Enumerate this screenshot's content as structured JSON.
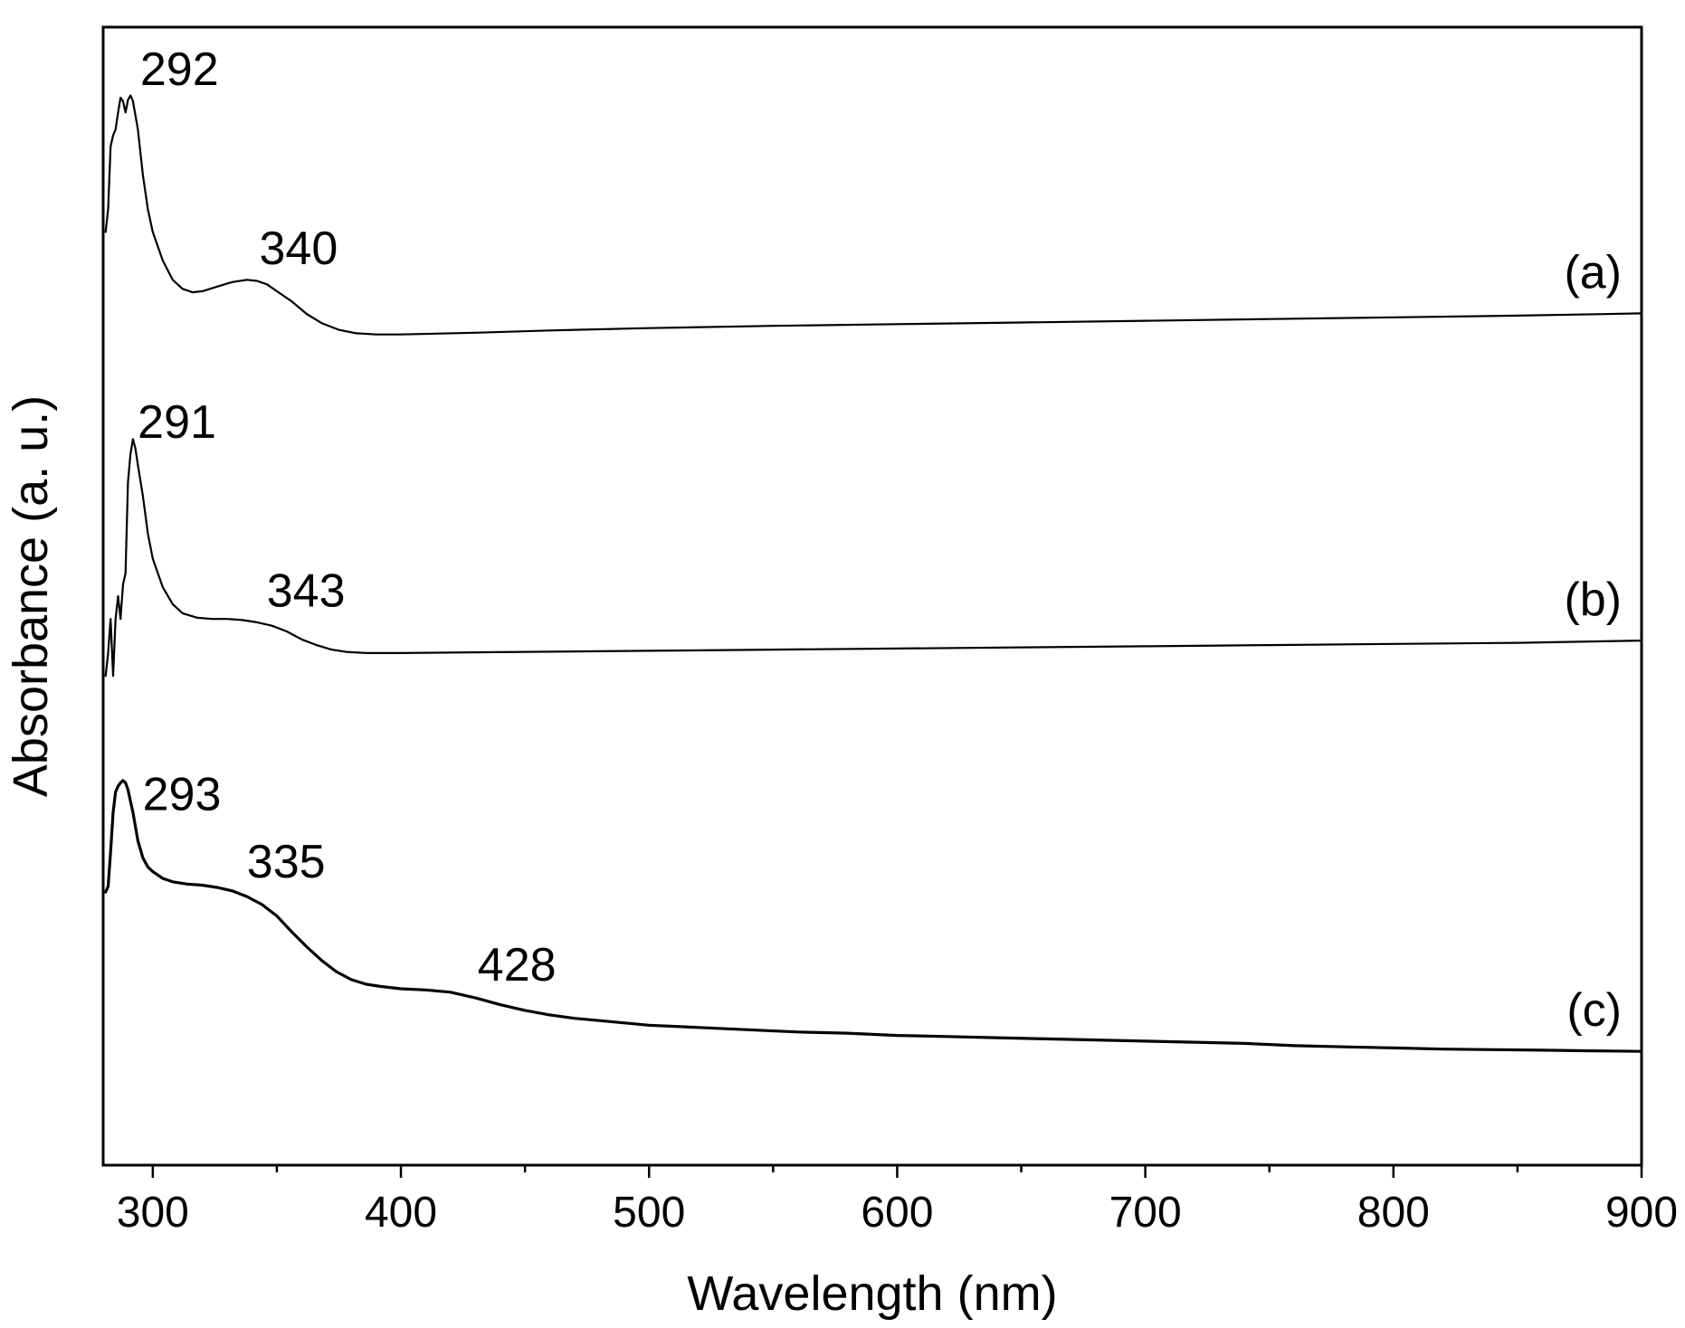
{
  "chart_data": {
    "type": "line",
    "xlabel": "Wavelength (nm)",
    "ylabel": "Absorbance (a. u.)",
    "xlim": [
      280,
      900
    ],
    "ylim": [
      0,
      1
    ],
    "x_ticks": [
      300,
      400,
      500,
      600,
      700,
      800,
      900
    ],
    "x_minor_ticks": [
      350,
      450,
      550,
      650,
      750,
      850
    ],
    "y_ticks_shown": false,
    "grid": false,
    "legend": "none",
    "series": [
      {
        "label": "(a)",
        "peaks": [
          292,
          340
        ],
        "points": [
          [
            281,
            0.82
          ],
          [
            282,
            0.84
          ],
          [
            283,
            0.895
          ],
          [
            284,
            0.905
          ],
          [
            285,
            0.91
          ],
          [
            286,
            0.925
          ],
          [
            287,
            0.938
          ],
          [
            288,
            0.935
          ],
          [
            289,
            0.925
          ],
          [
            290,
            0.936
          ],
          [
            291,
            0.94
          ],
          [
            292,
            0.935
          ],
          [
            294,
            0.91
          ],
          [
            296,
            0.87
          ],
          [
            298,
            0.84
          ],
          [
            300,
            0.82
          ],
          [
            304,
            0.795
          ],
          [
            308,
            0.778
          ],
          [
            312,
            0.77
          ],
          [
            316,
            0.767
          ],
          [
            320,
            0.768
          ],
          [
            326,
            0.772
          ],
          [
            332,
            0.776
          ],
          [
            338,
            0.778
          ],
          [
            342,
            0.777
          ],
          [
            346,
            0.774
          ],
          [
            350,
            0.768
          ],
          [
            356,
            0.759
          ],
          [
            362,
            0.748
          ],
          [
            368,
            0.74
          ],
          [
            375,
            0.734
          ],
          [
            382,
            0.731
          ],
          [
            390,
            0.73
          ],
          [
            400,
            0.73
          ],
          [
            430,
            0.7315
          ],
          [
            460,
            0.7335
          ],
          [
            500,
            0.7355
          ],
          [
            550,
            0.7375
          ],
          [
            600,
            0.739
          ],
          [
            650,
            0.7405
          ],
          [
            700,
            0.742
          ],
          [
            750,
            0.7435
          ],
          [
            800,
            0.745
          ],
          [
            850,
            0.7465
          ],
          [
            900,
            0.7485
          ]
        ]
      },
      {
        "label": "(b)",
        "peaks": [
          291,
          343
        ],
        "points": [
          [
            281,
            0.43
          ],
          [
            282,
            0.45
          ],
          [
            283,
            0.48
          ],
          [
            284,
            0.43
          ],
          [
            285,
            0.48
          ],
          [
            286,
            0.5
          ],
          [
            287,
            0.48
          ],
          [
            288,
            0.51
          ],
          [
            289,
            0.52
          ],
          [
            290,
            0.6
          ],
          [
            291,
            0.625
          ],
          [
            292,
            0.638
          ],
          [
            293,
            0.63
          ],
          [
            294,
            0.615
          ],
          [
            296,
            0.588
          ],
          [
            298,
            0.555
          ],
          [
            300,
            0.533
          ],
          [
            304,
            0.508
          ],
          [
            308,
            0.493
          ],
          [
            312,
            0.485
          ],
          [
            318,
            0.481
          ],
          [
            324,
            0.48
          ],
          [
            330,
            0.48
          ],
          [
            336,
            0.479
          ],
          [
            342,
            0.477
          ],
          [
            348,
            0.474
          ],
          [
            354,
            0.469
          ],
          [
            360,
            0.462
          ],
          [
            366,
            0.457
          ],
          [
            372,
            0.453
          ],
          [
            378,
            0.451
          ],
          [
            386,
            0.45
          ],
          [
            400,
            0.45
          ],
          [
            450,
            0.451
          ],
          [
            500,
            0.452
          ],
          [
            550,
            0.453
          ],
          [
            600,
            0.454
          ],
          [
            650,
            0.455
          ],
          [
            700,
            0.456
          ],
          [
            750,
            0.457
          ],
          [
            800,
            0.458
          ],
          [
            850,
            0.459
          ],
          [
            900,
            0.461
          ]
        ]
      },
      {
        "label": "(c)",
        "peaks": [
          293,
          335,
          428
        ],
        "points": [
          [
            281,
            0.24
          ],
          [
            282,
            0.245
          ],
          [
            283,
            0.275
          ],
          [
            284,
            0.31
          ],
          [
            285,
            0.328
          ],
          [
            286,
            0.333
          ],
          [
            287,
            0.336
          ],
          [
            288,
            0.338
          ],
          [
            289,
            0.336
          ],
          [
            290,
            0.33
          ],
          [
            292,
            0.31
          ],
          [
            294,
            0.285
          ],
          [
            296,
            0.27
          ],
          [
            298,
            0.262
          ],
          [
            300,
            0.258
          ],
          [
            304,
            0.252
          ],
          [
            308,
            0.249
          ],
          [
            314,
            0.247
          ],
          [
            320,
            0.246
          ],
          [
            326,
            0.244
          ],
          [
            332,
            0.241
          ],
          [
            338,
            0.236
          ],
          [
            344,
            0.229
          ],
          [
            350,
            0.219
          ],
          [
            356,
            0.205
          ],
          [
            362,
            0.192
          ],
          [
            368,
            0.18
          ],
          [
            374,
            0.17
          ],
          [
            380,
            0.163
          ],
          [
            386,
            0.159
          ],
          [
            392,
            0.157
          ],
          [
            400,
            0.155
          ],
          [
            410,
            0.154
          ],
          [
            420,
            0.152
          ],
          [
            430,
            0.147
          ],
          [
            440,
            0.141
          ],
          [
            450,
            0.136
          ],
          [
            460,
            0.132
          ],
          [
            470,
            0.129
          ],
          [
            480,
            0.127
          ],
          [
            500,
            0.123
          ],
          [
            520,
            0.121
          ],
          [
            540,
            0.119
          ],
          [
            560,
            0.117
          ],
          [
            580,
            0.116
          ],
          [
            600,
            0.114
          ],
          [
            620,
            0.113
          ],
          [
            640,
            0.112
          ],
          [
            660,
            0.111
          ],
          [
            680,
            0.11
          ],
          [
            700,
            0.109
          ],
          [
            720,
            0.108
          ],
          [
            740,
            0.107
          ],
          [
            760,
            0.105
          ],
          [
            780,
            0.104
          ],
          [
            800,
            0.103
          ],
          [
            820,
            0.102
          ],
          [
            840,
            0.1015
          ],
          [
            860,
            0.101
          ],
          [
            880,
            0.1005
          ],
          [
            900,
            0.1
          ]
        ]
      }
    ],
    "annotations": [
      {
        "text": "292",
        "series": 0,
        "x": 292
      },
      {
        "text": "340",
        "series": 0,
        "x": 340
      },
      {
        "text": "291",
        "series": 1,
        "x": 291
      },
      {
        "text": "343",
        "series": 1,
        "x": 343
      },
      {
        "text": "293",
        "series": 2,
        "x": 293
      },
      {
        "text": "335",
        "series": 2,
        "x": 335
      },
      {
        "text": "428",
        "series": 2,
        "x": 428
      }
    ]
  }
}
